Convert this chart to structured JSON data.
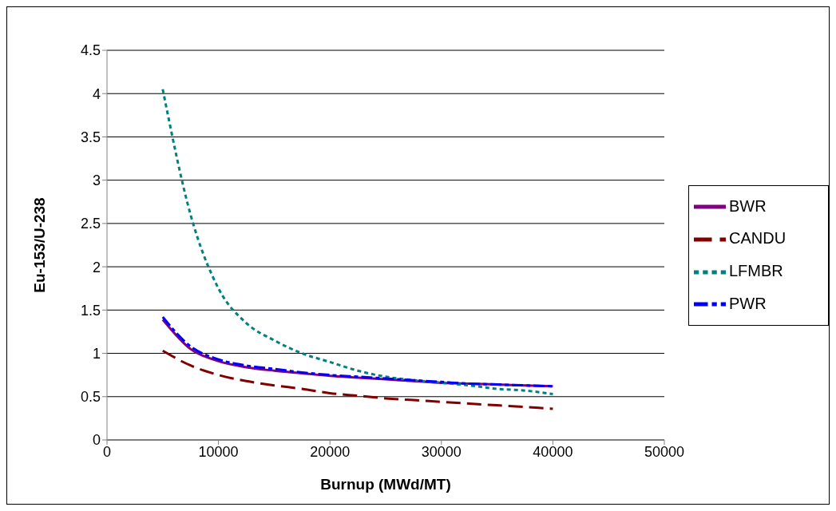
{
  "chart_data": {
    "type": "line",
    "xlabel": "Burnup (MWd/MT)",
    "ylabel": "Eu-153/U-238",
    "x": [
      5000,
      7500,
      10000,
      12500,
      15000,
      17500,
      20000,
      22500,
      25000,
      27500,
      30000,
      32500,
      35000,
      37500,
      40000
    ],
    "series": [
      {
        "name": "BWR",
        "color": "#800080",
        "line_style": "solid",
        "values": [
          1.39,
          1.05,
          0.91,
          0.84,
          0.8,
          0.77,
          0.74,
          0.72,
          0.7,
          0.68,
          0.66,
          0.65,
          0.64,
          0.63,
          0.62
        ]
      },
      {
        "name": "CANDU",
        "color": "#800000",
        "line_style": "dashed",
        "values": [
          1.03,
          0.86,
          0.75,
          0.68,
          0.63,
          0.59,
          0.54,
          0.51,
          0.48,
          0.46,
          0.44,
          0.42,
          0.4,
          0.38,
          0.36
        ]
      },
      {
        "name": "LFMBR",
        "color": "#008080",
        "line_style": "dotted",
        "values": [
          4.05,
          2.6,
          1.75,
          1.35,
          1.15,
          1.0,
          0.9,
          0.8,
          0.73,
          0.69,
          0.66,
          0.63,
          0.59,
          0.57,
          0.53
        ]
      },
      {
        "name": "PWR",
        "color": "#0000ff",
        "line_style": "dashdot",
        "values": [
          1.42,
          1.08,
          0.93,
          0.86,
          0.82,
          0.78,
          0.75,
          0.73,
          0.71,
          0.69,
          0.67,
          0.65,
          0.64,
          0.63,
          0.62
        ]
      }
    ],
    "xlim": [
      0,
      50000
    ],
    "xticks": [
      0,
      10000,
      20000,
      30000,
      40000,
      50000
    ],
    "ylim": [
      0,
      4.5
    ],
    "yticks": [
      0,
      0.5,
      1,
      1.5,
      2,
      2.5,
      3,
      3.5,
      4,
      4.5
    ],
    "grid": "y",
    "legend": "right",
    "marker": "none"
  }
}
